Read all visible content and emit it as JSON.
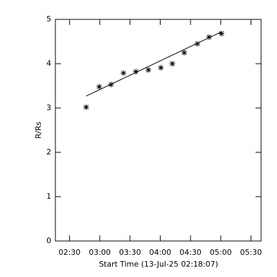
{
  "chart_data": {
    "type": "scatter",
    "xlabel": "Start Time (13-Jul-25 02:18:07)",
    "ylabel": "R/Rs",
    "points": {
      "x": [
        166.5,
        179.5,
        191.2,
        203.5,
        215.8,
        228.2,
        240.6,
        252,
        263.8,
        276.8,
        288.4,
        300.7
      ],
      "values": [
        3.02,
        3.48,
        3.53,
        3.79,
        3.82,
        3.86,
        3.91,
        4.0,
        4.25,
        4.45,
        4.6,
        4.68
      ],
      "color": "#000000"
    },
    "fit": {
      "x": [
        166.5,
        300.7
      ],
      "values": [
        3.27,
        4.72
      ],
      "color": "#000000"
    },
    "xlim": [
      136,
      340
    ],
    "xticks": [
      {
        "value": 150,
        "label": "02:30"
      },
      {
        "value": 180,
        "label": "03:00"
      },
      {
        "value": 210,
        "label": "03:30"
      },
      {
        "value": 240,
        "label": "04:00"
      },
      {
        "value": 270,
        "label": "04:30"
      },
      {
        "value": 300,
        "label": "05:00"
      },
      {
        "value": 330,
        "label": "05:30"
      }
    ],
    "ylim": [
      0,
      5
    ],
    "yticks": [
      0,
      1,
      2,
      3,
      4,
      5
    ],
    "grid": false
  }
}
